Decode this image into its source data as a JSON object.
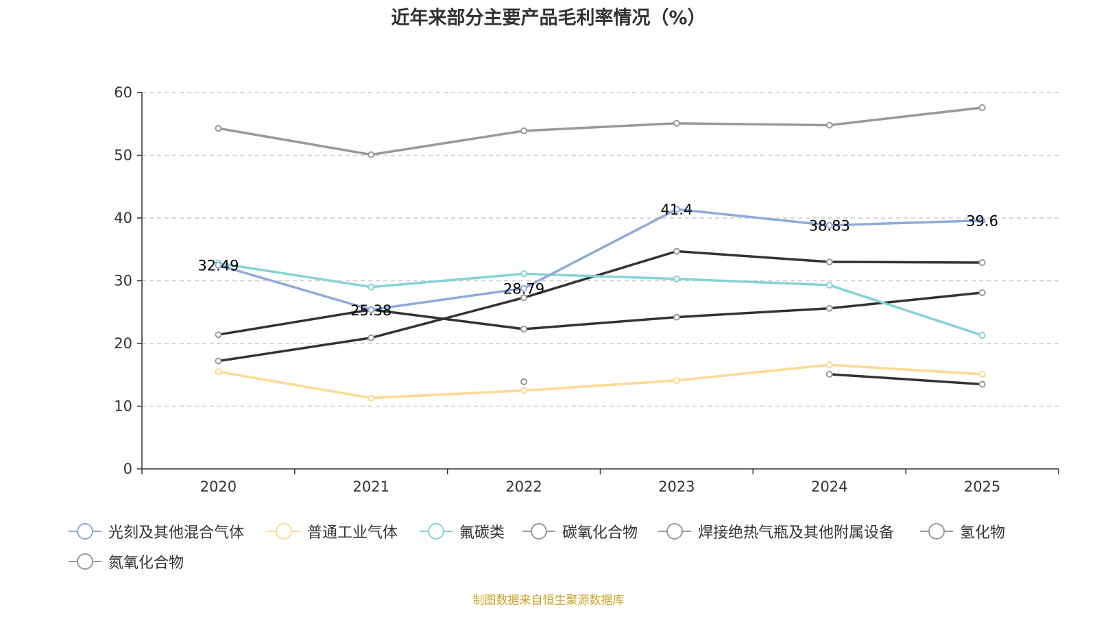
{
  "chart_data": {
    "type": "line",
    "title": "近年来部分主要产品毛利率情况（%）",
    "source": "制图数据来自恒生聚源数据库",
    "categories": [
      "2020",
      "2021",
      "2022",
      "2023",
      "2024",
      "2025"
    ],
    "ylim": [
      0,
      60
    ],
    "yticks": [
      0,
      10,
      20,
      30,
      40,
      50,
      60
    ],
    "grid": true,
    "legend_position": "bottom",
    "series": [
      {
        "name": "光刻及其他混合气体",
        "color": "#8eaadb",
        "values": [
          32.49,
          25.38,
          28.79,
          41.4,
          38.83,
          39.6
        ],
        "labels": [
          "32.49",
          "25.38",
          "28.79",
          "41.4",
          "38.83",
          "39.6"
        ]
      },
      {
        "name": "普通工业气体",
        "color": "#fdd994",
        "values": [
          15.5,
          11.3,
          12.5,
          14.1,
          16.6,
          15.1
        ],
        "labels": []
      },
      {
        "name": "氟碳类",
        "color": "#86d3d4",
        "values": [
          32.8,
          29.0,
          31.1,
          30.3,
          29.3,
          21.3
        ],
        "labels": []
      },
      {
        "name": "碳氧化合物",
        "color": "#333333",
        "values": [
          21.4,
          25.4,
          22.3,
          24.2,
          25.6,
          28.1
        ],
        "labels": []
      },
      {
        "name": "焊接绝热气瓶及其他附属设备",
        "color": "#333333",
        "values": [
          17.2,
          20.9,
          27.3,
          34.7,
          33.0,
          32.9
        ],
        "labels": []
      },
      {
        "name": "氢化物",
        "color": "#333333",
        "values": [
          null,
          null,
          13.9,
          null,
          15.1,
          13.5
        ],
        "labels": []
      },
      {
        "name": "氮氧化合物",
        "color": "#999999",
        "values": [
          54.3,
          50.1,
          53.9,
          55.1,
          54.8,
          57.6
        ],
        "labels": []
      }
    ]
  }
}
